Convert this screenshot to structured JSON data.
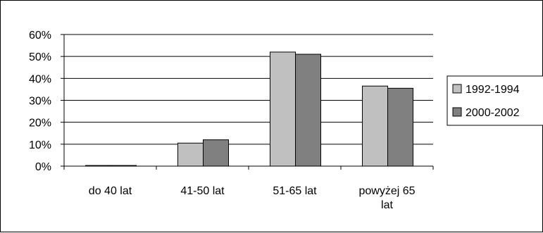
{
  "chart_data": {
    "type": "bar",
    "categories": [
      [
        "do 40 lat"
      ],
      [
        "41-50 lat"
      ],
      [
        "51-65 lat"
      ],
      [
        "powyżej 65",
        "lat"
      ]
    ],
    "series": [
      {
        "name": "1992-1994",
        "color": "#c0c0c0",
        "values": [
          0.3,
          10.5,
          52,
          36.5
        ]
      },
      {
        "name": "2000-2002",
        "color": "#808080",
        "values": [
          0.3,
          12,
          51,
          35.5
        ]
      }
    ],
    "y_ticks": [
      "0%",
      "10%",
      "20%",
      "30%",
      "40%",
      "50%",
      "60%"
    ],
    "ylim": [
      0,
      60
    ],
    "grid": true,
    "legend": "right"
  }
}
